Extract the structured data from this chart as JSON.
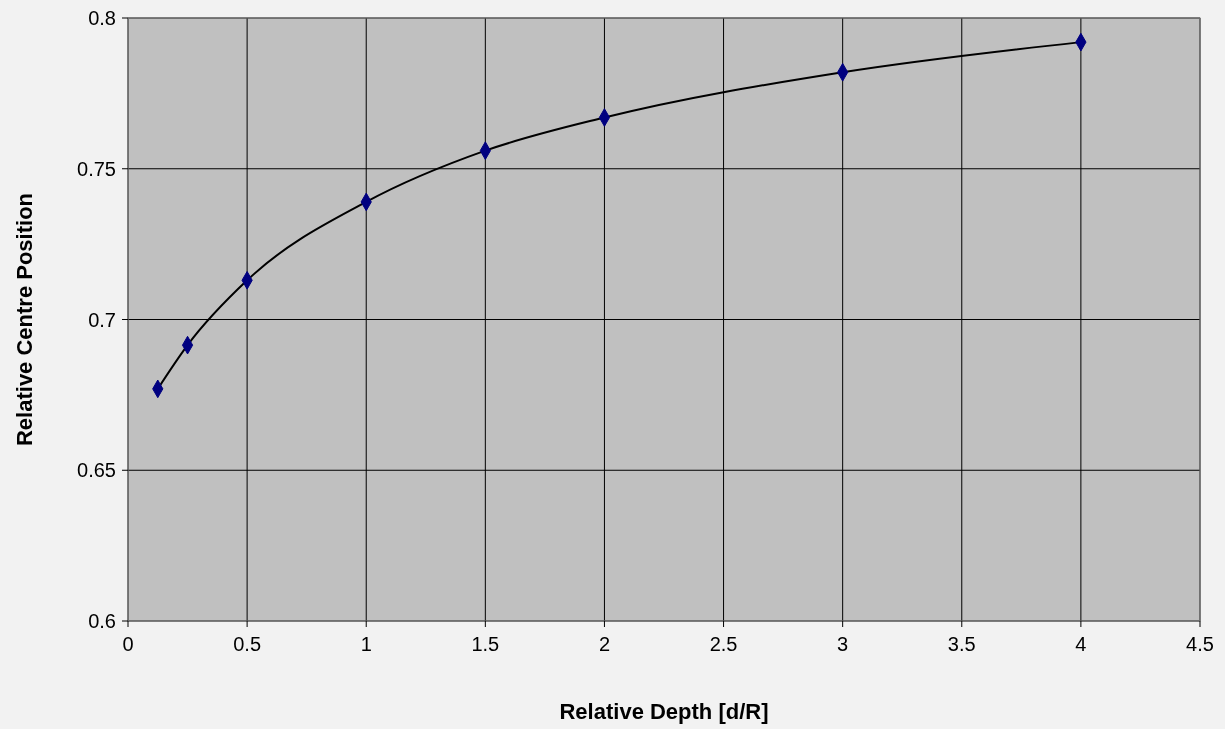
{
  "chart_data": {
    "type": "line",
    "xlabel": "Relative Depth [d/R]",
    "ylabel": "Relative Centre Position",
    "series": [
      {
        "color": "#000000",
        "x": [
          0.125,
          0.25,
          0.5,
          1,
          1.5,
          2,
          3,
          4
        ],
        "values": [
          0.677,
          0.6915,
          0.713,
          0.739,
          0.756,
          0.767,
          0.782,
          0.792
        ]
      }
    ],
    "xlim": [
      0,
      4.5
    ],
    "xticks": [
      0,
      0.5,
      1,
      1.5,
      2,
      2.5,
      3,
      3.5,
      4,
      4.5
    ],
    "ylim": [
      0.6,
      0.8
    ],
    "yticks": [
      0.6,
      0.65,
      0.7,
      0.75,
      0.8
    ],
    "grid": true,
    "marker": "diamond",
    "line_style": "solid"
  }
}
